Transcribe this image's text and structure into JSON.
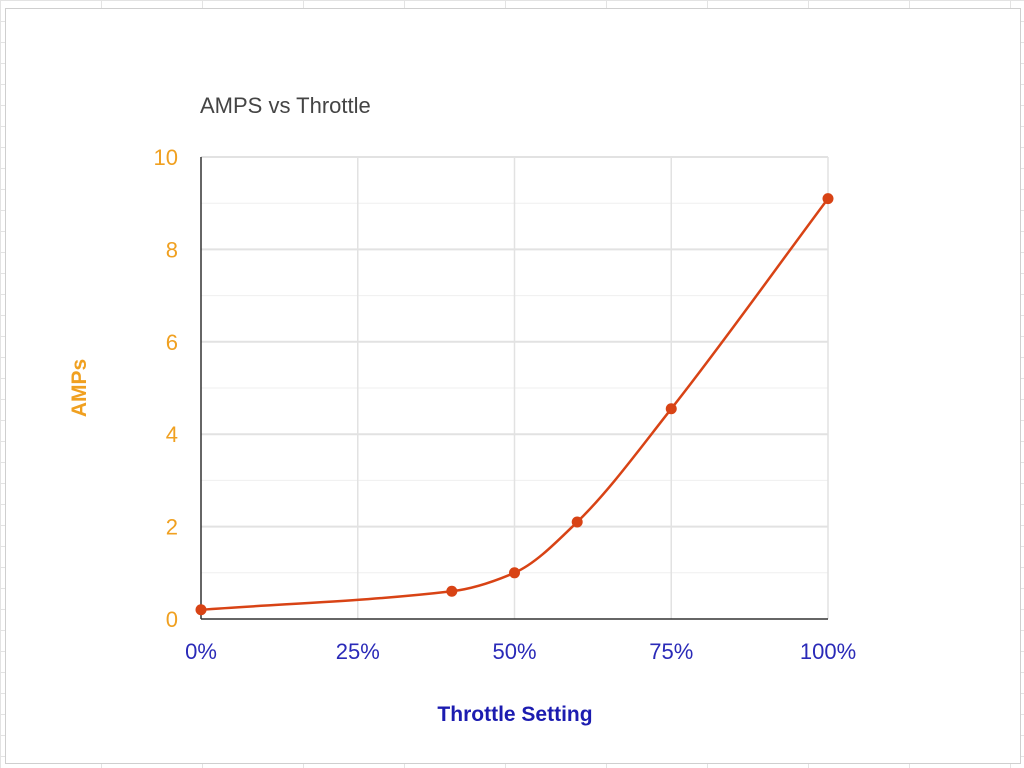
{
  "chart_data": {
    "type": "line",
    "title": "AMPS vs Throttle",
    "xlabel": "Throttle Setting",
    "ylabel": "AMPs",
    "x_unit": "percent",
    "xlim": [
      0,
      100
    ],
    "ylim": [
      0,
      10
    ],
    "x_ticks": [
      0,
      25,
      50,
      75,
      100
    ],
    "x_tick_labels": [
      "0%",
      "25%",
      "50%",
      "75%",
      "100%"
    ],
    "y_ticks": [
      0,
      2,
      4,
      6,
      8,
      10
    ],
    "y_tick_labels": [
      "0",
      "2",
      "4",
      "6",
      "8",
      "10"
    ],
    "grid": true,
    "series": [
      {
        "x": [
          0,
          40,
          50,
          60,
          75,
          100
        ],
        "y": [
          0.2,
          0.6,
          1.0,
          2.1,
          4.55,
          9.1
        ],
        "color": "#d84315",
        "smooth": true
      }
    ]
  }
}
